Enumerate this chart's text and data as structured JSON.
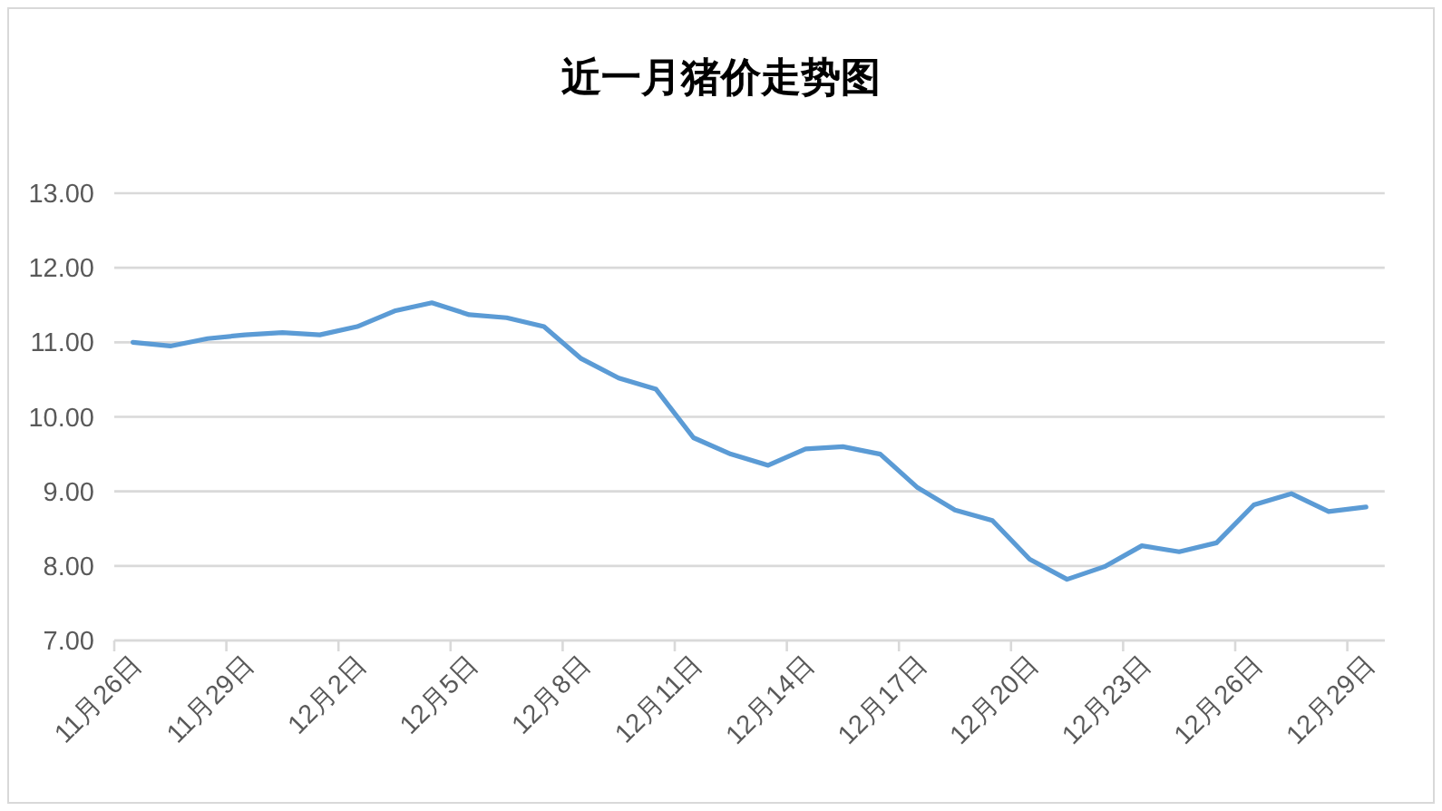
{
  "chart_data": {
    "type": "line",
    "title": "近一月猪价走势图",
    "categories": [
      "11月26日",
      null,
      null,
      "11月29日",
      null,
      null,
      "12月2日",
      null,
      null,
      "12月5日",
      null,
      null,
      "12月8日",
      null,
      null,
      "12月11日",
      null,
      null,
      "12月14日",
      null,
      null,
      "12月17日",
      null,
      null,
      "12月20日",
      null,
      null,
      "12月23日",
      null,
      null,
      "12月26日",
      null,
      null,
      "12月29日"
    ],
    "values": [
      11.0,
      10.95,
      11.05,
      11.1,
      11.13,
      11.1,
      11.21,
      11.42,
      11.53,
      11.37,
      11.33,
      11.21,
      10.78,
      10.52,
      10.37,
      9.72,
      9.5,
      9.35,
      9.57,
      9.6,
      9.5,
      9.05,
      8.75,
      8.61,
      8.09,
      7.82,
      7.99,
      8.27,
      8.19,
      8.31,
      8.82,
      8.97,
      8.73,
      8.79
    ],
    "color": "#5b9bd5",
    "ylim": [
      7,
      13
    ],
    "yticks": [
      {
        "value": 7,
        "label": "7.00"
      },
      {
        "value": 8,
        "label": "8.00"
      },
      {
        "value": 9,
        "label": "9.00"
      },
      {
        "value": 10,
        "label": "10.00"
      },
      {
        "value": 11,
        "label": "11.00"
      },
      {
        "value": 12,
        "label": "12.00"
      },
      {
        "value": 13,
        "label": "13.00"
      }
    ],
    "grid": "y"
  }
}
